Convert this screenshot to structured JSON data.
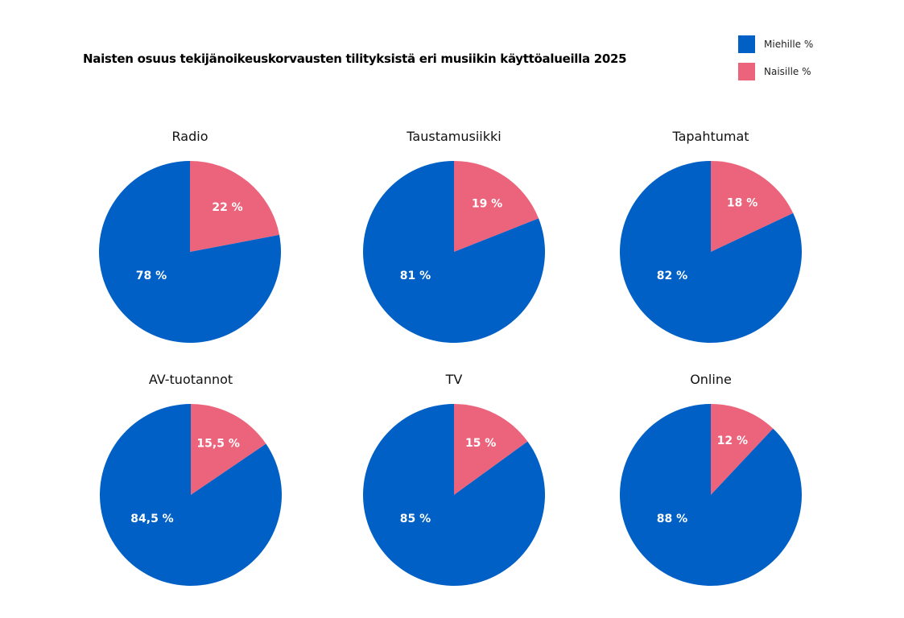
{
  "chart_data": {
    "type": "pie",
    "title": "Naisten osuus tekijänoikeuskorvausten tilityksistä eri musiikin käyttöalueilla 2025",
    "legend": [
      "Miehille %",
      "Naisille %"
    ],
    "legend_placement": "top-right",
    "colors": {
      "men": "#0060c6",
      "women": "#ec647c"
    },
    "pies": [
      {
        "category": "Radio",
        "women": 22,
        "men": 78,
        "women_label": "22 %",
        "men_label": "78 %"
      },
      {
        "category": "Taustamusiikki",
        "women": 19,
        "men": 81,
        "women_label": "19 %",
        "men_label": "81 %"
      },
      {
        "category": "Tapahtumat",
        "women": 18,
        "men": 82,
        "women_label": "18 %",
        "men_label": "82 %"
      },
      {
        "category": "AV-tuotannot",
        "women": 15.5,
        "men": 84.5,
        "women_label": "15,5 %",
        "men_label": "84,5 %"
      },
      {
        "category": "TV",
        "women": 15,
        "men": 85,
        "women_label": "15 %",
        "men_label": "85 %"
      },
      {
        "category": "Online",
        "women": 12,
        "men": 88,
        "women_label": "12 %",
        "men_label": "88 %"
      }
    ]
  }
}
